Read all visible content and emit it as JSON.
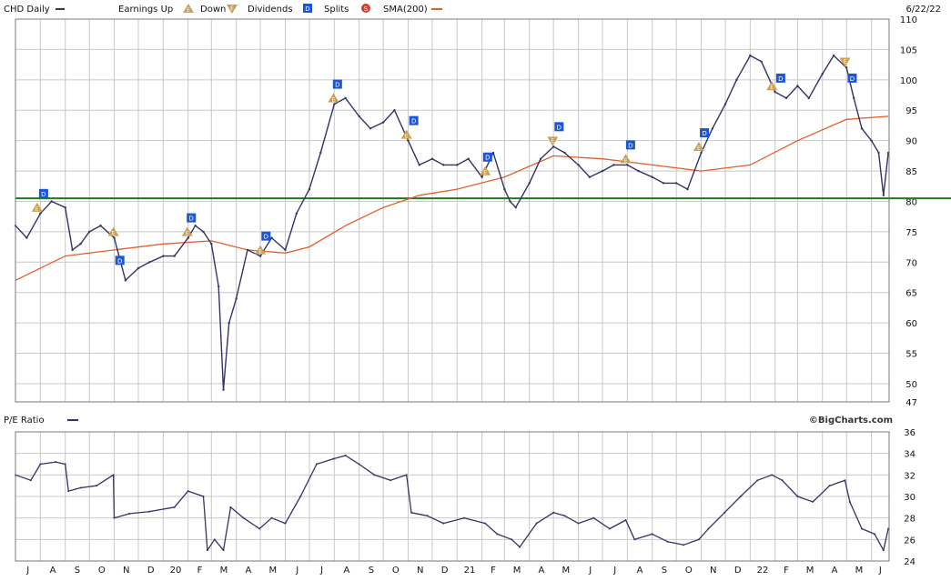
{
  "header": {
    "symbol_label": "CHD Daily",
    "earnings_up_label": "Earnings Up",
    "down_label": "Down",
    "dividends_label": "Dividends",
    "splits_label": "Splits",
    "sma_label": "SMA(200)",
    "date": "6/22/22"
  },
  "pe_panel": {
    "label": "P/E Ratio",
    "credit": "©BigCharts.com"
  },
  "colors": {
    "price": "#333366",
    "sma": "#e0602a",
    "support_line": "#1f7a1f",
    "grid": "#c8c8c8",
    "earnings_marker": "#c8a050",
    "dividend_marker": "#1a56d6",
    "split_marker": "#d04030"
  },
  "x_axis_labels": [
    "J",
    "A",
    "S",
    "O",
    "N",
    "D",
    "20",
    "F",
    "M",
    "A",
    "M",
    "J",
    "J",
    "A",
    "S",
    "O",
    "N",
    "D",
    "21",
    "F",
    "M",
    "A",
    "M",
    "J",
    "J",
    "A",
    "S",
    "O",
    "N",
    "D",
    "22",
    "F",
    "M",
    "A",
    "M",
    "J"
  ],
  "chart_data": [
    {
      "type": "line",
      "title": "CHD Daily",
      "ylim": [
        47,
        110
      ],
      "yticks": [
        47,
        50,
        55,
        60,
        65,
        70,
        75,
        80,
        85,
        90,
        95,
        100,
        105,
        110
      ],
      "grid": true,
      "legend": "top",
      "x_range": [
        "2019-07",
        "2022-06"
      ],
      "horizontal_line": 80.5,
      "series": [
        {
          "name": "CHD Daily",
          "x": [
            "2019-07-01",
            "2019-07-15",
            "2019-08-01",
            "2019-08-15",
            "2019-09-01",
            "2019-09-10",
            "2019-09-20",
            "2019-10-01",
            "2019-10-15",
            "2019-11-01",
            "2019-11-15",
            "2019-12-01",
            "2019-12-15",
            "2020-01-01",
            "2020-01-15",
            "2020-02-01",
            "2020-02-10",
            "2020-02-20",
            "2020-03-01",
            "2020-03-10",
            "2020-03-16",
            "2020-03-23",
            "2020-04-01",
            "2020-04-15",
            "2020-05-01",
            "2020-05-15",
            "2020-06-01",
            "2020-06-15",
            "2020-07-01",
            "2020-07-15",
            "2020-08-01",
            "2020-08-15",
            "2020-09-01",
            "2020-09-15",
            "2020-10-01",
            "2020-10-15",
            "2020-11-01",
            "2020-11-15",
            "2020-12-01",
            "2020-12-15",
            "2021-01-01",
            "2021-01-15",
            "2021-02-01",
            "2021-02-15",
            "2021-03-01",
            "2021-03-08",
            "2021-03-15",
            "2021-04-01",
            "2021-04-15",
            "2021-05-01",
            "2021-05-15",
            "2021-06-01",
            "2021-06-15",
            "2021-07-01",
            "2021-07-15",
            "2021-08-01",
            "2021-08-15",
            "2021-09-01",
            "2021-09-15",
            "2021-10-01",
            "2021-10-15",
            "2021-11-01",
            "2021-11-15",
            "2021-12-01",
            "2021-12-15",
            "2022-01-01",
            "2022-01-15",
            "2022-02-01",
            "2022-02-15",
            "2022-03-01",
            "2022-03-15",
            "2022-04-01",
            "2022-04-15",
            "2022-05-01",
            "2022-05-10",
            "2022-05-20",
            "2022-06-01",
            "2022-06-10",
            "2022-06-16",
            "2022-06-22"
          ],
          "values": [
            76,
            74,
            78,
            80,
            79,
            72,
            73,
            75,
            76,
            74,
            67,
            69,
            70,
            71,
            71,
            74,
            76,
            75,
            73,
            66,
            49,
            60,
            64,
            72,
            71,
            74,
            72,
            78,
            82,
            88,
            96,
            97,
            94,
            92,
            93,
            95,
            90,
            86,
            87,
            86,
            86,
            87,
            84,
            88,
            82,
            80,
            79,
            83,
            87,
            89,
            88,
            86,
            84,
            85,
            86,
            86,
            85,
            84,
            83,
            83,
            82,
            88,
            92,
            96,
            100,
            104,
            103,
            98,
            97,
            99,
            97,
            101,
            104,
            102,
            97,
            92,
            90,
            88,
            81,
            88
          ]
        },
        {
          "name": "SMA(200)",
          "x": [
            "2019-07-01",
            "2019-09-01",
            "2019-11-01",
            "2020-01-01",
            "2020-03-01",
            "2020-04-15",
            "2020-06-01",
            "2020-07-01",
            "2020-08-15",
            "2020-10-01",
            "2020-11-15",
            "2021-01-01",
            "2021-03-01",
            "2021-05-01",
            "2021-07-01",
            "2021-09-01",
            "2021-11-01",
            "2022-01-01",
            "2022-03-01",
            "2022-05-01",
            "2022-06-22"
          ],
          "values": [
            67,
            71,
            72,
            73,
            73.5,
            72,
            71.5,
            72.5,
            76,
            79,
            81,
            82,
            84,
            87.5,
            87,
            86,
            85,
            86,
            90,
            93.5,
            94
          ]
        }
      ],
      "markers": {
        "dividends": [
          "2019-08-05",
          "2019-11-08",
          "2020-02-05",
          "2020-05-08",
          "2020-08-05",
          "2020-11-08",
          "2021-02-08",
          "2021-05-08",
          "2021-08-05",
          "2021-11-05",
          "2022-02-08",
          "2022-05-08"
        ],
        "earnings_up": [
          "2019-07-28",
          "2019-10-31",
          "2020-01-31",
          "2020-05-01",
          "2020-07-31",
          "2020-10-30",
          "2021-02-05",
          "2021-07-30",
          "2021-10-29",
          "2022-01-28"
        ],
        "earnings_down": [
          "2021-04-30",
          "2022-04-29"
        ]
      }
    },
    {
      "type": "line",
      "title": "P/E Ratio",
      "ylim": [
        24,
        36
      ],
      "yticks": [
        24,
        26,
        28,
        30,
        32,
        34,
        36
      ],
      "grid": true,
      "x_range": [
        "2019-07",
        "2022-06"
      ],
      "series": [
        {
          "name": "P/E Ratio",
          "x": [
            "2019-07-01",
            "2019-07-20",
            "2019-08-01",
            "2019-08-20",
            "2019-09-01",
            "2019-09-05",
            "2019-09-20",
            "2019-10-10",
            "2019-10-31",
            "2019-11-01",
            "2019-11-20",
            "2019-12-15",
            "2020-01-15",
            "2020-02-01",
            "2020-02-20",
            "2020-02-25",
            "2020-03-05",
            "2020-03-16",
            "2020-03-25",
            "2020-04-10",
            "2020-04-30",
            "2020-05-15",
            "2020-06-01",
            "2020-06-20",
            "2020-07-10",
            "2020-07-31",
            "2020-08-15",
            "2020-09-01",
            "2020-09-20",
            "2020-10-10",
            "2020-10-30",
            "2020-11-05",
            "2020-11-25",
            "2020-12-15",
            "2021-01-10",
            "2021-02-05",
            "2021-02-20",
            "2021-03-10",
            "2021-03-20",
            "2021-04-10",
            "2021-05-01",
            "2021-05-15",
            "2021-06-01",
            "2021-06-20",
            "2021-07-10",
            "2021-07-30",
            "2021-08-10",
            "2021-09-01",
            "2021-09-20",
            "2021-10-10",
            "2021-10-29",
            "2021-11-10",
            "2021-11-30",
            "2021-12-20",
            "2022-01-10",
            "2022-01-28",
            "2022-02-10",
            "2022-03-01",
            "2022-03-20",
            "2022-04-10",
            "2022-04-29",
            "2022-05-05",
            "2022-05-20",
            "2022-06-05",
            "2022-06-16",
            "2022-06-22"
          ],
          "values": [
            32,
            31.5,
            33,
            33.2,
            33,
            30.5,
            30.8,
            31,
            32,
            28,
            28.4,
            28.6,
            29,
            30.5,
            30,
            25,
            26,
            25,
            29,
            28,
            27,
            28,
            27.5,
            30,
            33,
            33.5,
            33.8,
            33,
            32,
            31.5,
            32,
            28.5,
            28.2,
            27.5,
            28,
            27.5,
            26.5,
            26,
            25.3,
            27.5,
            28.5,
            28.2,
            27.5,
            28,
            27,
            27.8,
            26,
            26.5,
            25.8,
            25.5,
            26,
            27,
            28.5,
            30,
            31.5,
            32,
            31.5,
            30,
            29.5,
            31,
            31.5,
            29.5,
            27,
            26.5,
            25,
            27
          ]
        }
      ]
    }
  ]
}
